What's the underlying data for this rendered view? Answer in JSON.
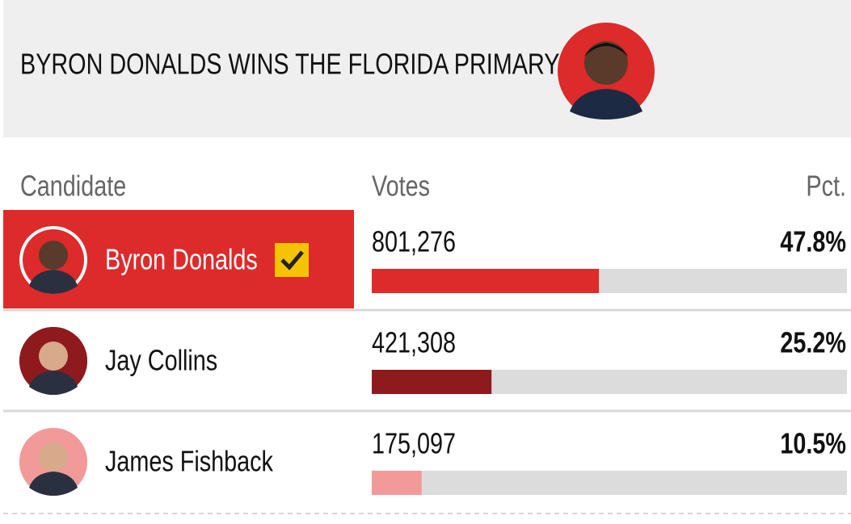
{
  "header": {
    "title": "BYRON DONALDS WINS THE FLORIDA PRIMARY"
  },
  "table": {
    "columns": [
      "Candidate",
      "Votes",
      "Pct."
    ],
    "rows": [
      {
        "name": "Byron Donalds",
        "votes": "801,276",
        "pct": 47.8,
        "pct_label": "47.8%",
        "winner": true,
        "color": "#dd2a2a"
      },
      {
        "name": "Jay Collins",
        "votes": "421,308",
        "pct": 25.2,
        "pct_label": "25.2%",
        "winner": false,
        "color": "#8e1a1e"
      },
      {
        "name": "James Fishback",
        "votes": "175,097",
        "pct": 10.5,
        "pct_label": "10.5%",
        "winner": false,
        "color": "#f29a9a"
      }
    ]
  }
}
